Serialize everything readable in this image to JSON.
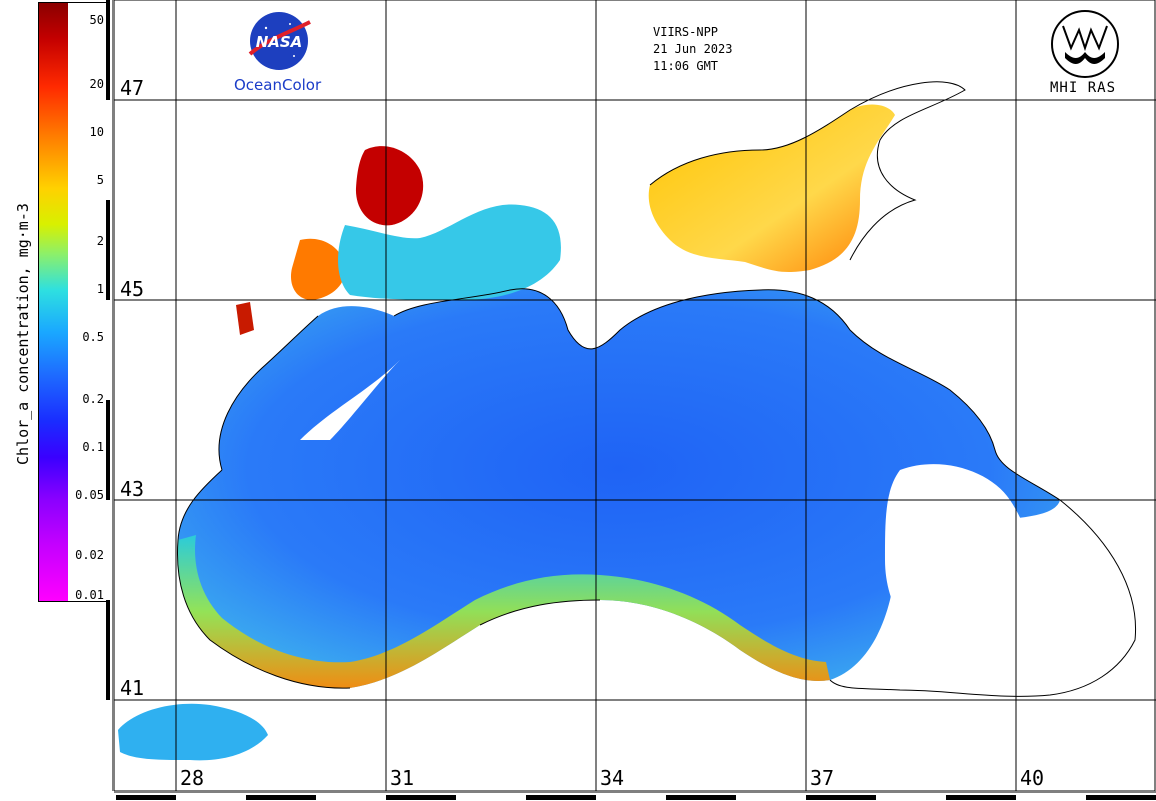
{
  "colorbar": {
    "title": "Chlor_a concentration, mg·m-3",
    "labels": [
      "50",
      "20",
      "10",
      "5",
      "2",
      "1",
      "0.5",
      "0.2",
      "0.1",
      "0.05",
      "0.02",
      "0.01"
    ]
  },
  "header": {
    "sensor": "VIIRS-NPP",
    "date": "21 Jun 2023",
    "time": "11:06 GMT"
  },
  "logos": {
    "nasa_text": "NASA",
    "oceancolor": "OceanColor",
    "mhi": "MHI RAS"
  },
  "grid": {
    "latitudes": [
      "47",
      "45",
      "43",
      "41"
    ],
    "longitudes": [
      "28",
      "31",
      "34",
      "37",
      "40"
    ]
  },
  "colors": {
    "land": "#ffffff",
    "coast": "#000000",
    "sea_low": "#1e6dff",
    "sea_mid": "#2ee0e0",
    "shelf_high": "#ffd100",
    "very_high": "#c40000"
  }
}
